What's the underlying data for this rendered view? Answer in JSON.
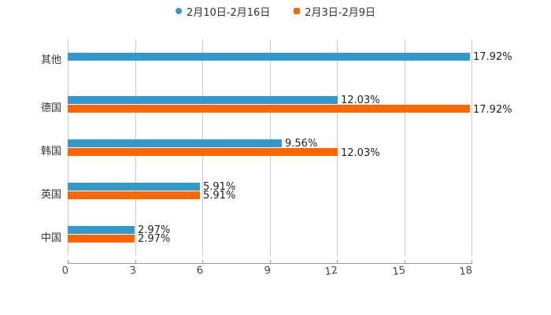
{
  "chart_data": {
    "type": "bar",
    "orientation": "horizontal",
    "title": "",
    "xlabel": "",
    "ylabel": "",
    "categories": [
      "其他",
      "德国",
      "韩国",
      "英国",
      "中国"
    ],
    "series": [
      {
        "name": "2月10日-2月16日",
        "color": "#3399cc",
        "values": [
          17.92,
          12.03,
          9.56,
          5.91,
          2.97
        ],
        "labels": [
          "17.92%",
          "12.03%",
          "9.56%",
          "5.91%",
          "2.97%"
        ]
      },
      {
        "name": "2月3日-2月9日",
        "color": "#ff6600",
        "values": [
          null,
          17.92,
          12.03,
          5.91,
          2.97
        ],
        "labels": [
          "",
          "17.92%",
          "12.03%",
          "5.91%",
          "2.97%"
        ]
      }
    ],
    "xlim": [
      0,
      18
    ],
    "xticks": [
      "0",
      "3",
      "6",
      "9",
      "12",
      "15",
      "18"
    ],
    "grid": true,
    "legend_position": "top"
  },
  "legend": {
    "items": [
      {
        "label": "2月10日-2月16日",
        "color": "#3399cc",
        "shape": "circle"
      },
      {
        "label": "2月3日-2月9日",
        "color": "#ff6600",
        "shape": "square"
      }
    ]
  }
}
